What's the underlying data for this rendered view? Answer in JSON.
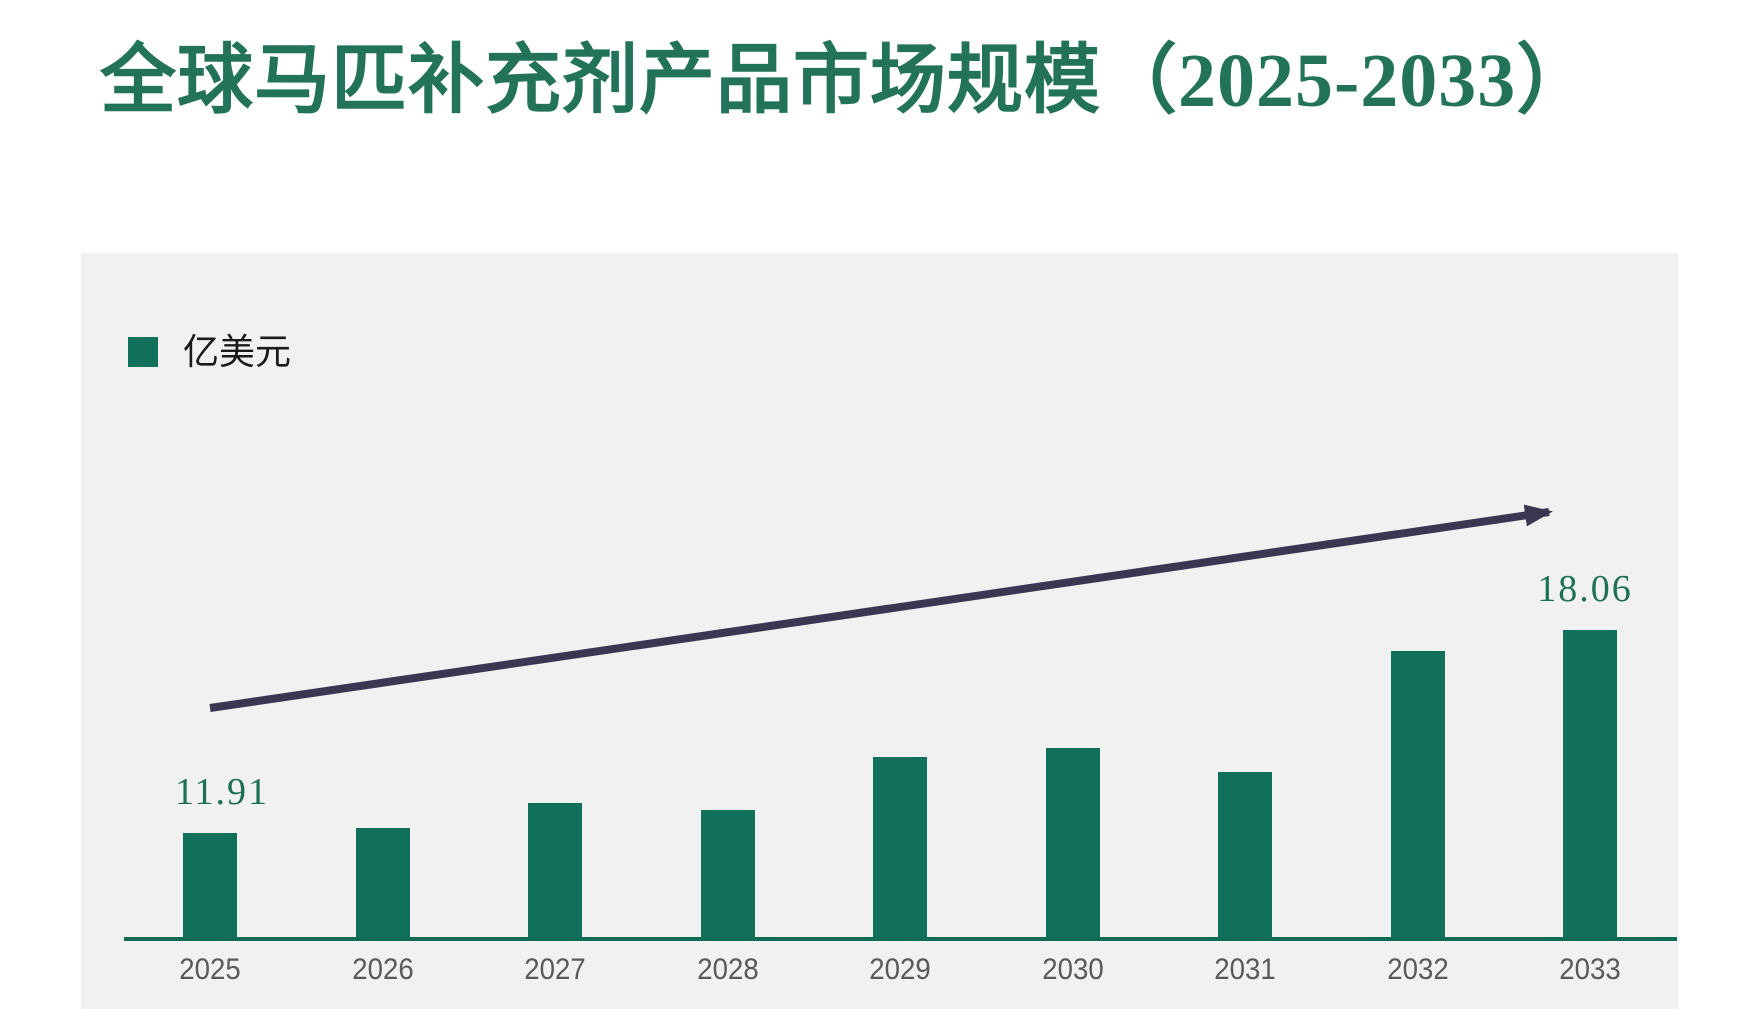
{
  "title": "全球马匹补充剂产品市场规模（2025-2033）",
  "legend": {
    "label": "亿美元"
  },
  "colors": {
    "bar": "#11705a",
    "axis_line": "#0e6b54",
    "title_text": "#23735a",
    "value_label_text": "#1e7054",
    "tick_label_text": "#595959",
    "arrow": "#3b3651",
    "panel_background": "#f1f1f1",
    "page_background": "#ffffff"
  },
  "chart_data": {
    "type": "bar",
    "title": "全球马匹补充剂产品市场规模（2025-2033）",
    "unit": "亿美元",
    "legend": [
      "亿美元"
    ],
    "legend_position": "top-left",
    "categories": [
      "2025",
      "2026",
      "2027",
      "2028",
      "2029",
      "2030",
      "2031",
      "2032",
      "2033"
    ],
    "values": [
      11.91,
      12.06,
      12.82,
      12.61,
      14.21,
      14.49,
      13.76,
      17.43,
      18.06
    ],
    "shown_value_labels": {
      "first_bar": "11.91",
      "last_bar": "18.06"
    },
    "ylim": [
      8.67,
      18.06
    ],
    "grid": false,
    "y_axis_visible": false,
    "trend_arrow": true
  }
}
